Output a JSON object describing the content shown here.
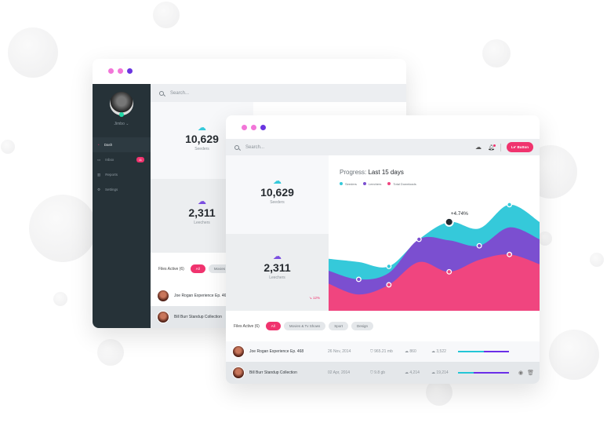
{
  "back_window": {
    "title_dots": [
      "#f276d8",
      "#f276d8",
      "#6a35e0"
    ],
    "search_placeholder": "Search...",
    "user": {
      "name": "Jimbo",
      "status_color": "#21d8a6"
    },
    "sidebar": {
      "items": [
        {
          "label": "Dash",
          "icon": "dashboard-icon",
          "active": true
        },
        {
          "label": "Inbox",
          "icon": "inbox-icon",
          "badge": "11"
        },
        {
          "label": "Reports",
          "icon": "bar-chart-icon"
        },
        {
          "label": "Settings",
          "icon": "gear-icon"
        }
      ]
    },
    "seeders": {
      "value": "10,629",
      "label": "Seeders"
    },
    "leechers": {
      "value": "2,311",
      "label": "Leechers"
    },
    "files": {
      "title": "Files Active (6)",
      "filters": [
        "All",
        "Movies"
      ]
    },
    "rows": [
      {
        "name": "Joe Rogan Experience Ep. 468"
      },
      {
        "name": "Bill Burr Standup Collection"
      }
    ]
  },
  "front_window": {
    "title_dots": [
      "#f276d8",
      "#f276d8",
      "#6a35e0"
    ],
    "search_placeholder": "Search...",
    "button_label": "Le' Button",
    "seeders": {
      "value": "10,629",
      "label": "Seeders"
    },
    "leechers": {
      "value": "2,311",
      "label": "Leechers",
      "change": "12%"
    },
    "chart": {
      "title_prefix": "Progress:",
      "title_range": "Last 15 days",
      "annotation": "+4.74%"
    },
    "files": {
      "title": "Files Active (6)",
      "filters": [
        "All",
        "Movies & Tv Shows",
        "Sport",
        "Design"
      ],
      "active_filter": "All"
    },
    "rows": [
      {
        "name": "Joe Rogan Experience Ep. 468",
        "date": "26 Nov, 2014",
        "size": "965.21 mb",
        "leechers": "860",
        "seeders": "3,522",
        "progress_seed": 0.5,
        "progress_total": 1.0
      },
      {
        "name": "Bill Burr Standup Collection",
        "date": "02 Apr, 2014",
        "size": "9.8 gb",
        "leechers": "4,214",
        "seeders": "19,214",
        "progress_seed": 0.3,
        "progress_total": 1.0
      }
    ]
  },
  "chart_data": {
    "type": "area",
    "title": "Progress: Last 15 days",
    "ylim": [
      0,
      100
    ],
    "series": [
      {
        "name": "Seeders",
        "color": "#35c9da",
        "values": [
          48,
          45,
          41,
          66,
          82,
          76,
          98,
          82
        ]
      },
      {
        "name": "Leechers",
        "color": "#7b4fd0",
        "values": [
          37,
          29,
          35,
          66,
          65,
          60,
          77,
          66
        ]
      },
      {
        "name": "Total Downloads",
        "color": "#f0457f",
        "values": [
          25,
          15,
          24,
          45,
          36,
          47,
          52,
          43
        ]
      }
    ],
    "annotation": {
      "text": "+4.74%",
      "series": "Seeders",
      "index": 4
    }
  }
}
